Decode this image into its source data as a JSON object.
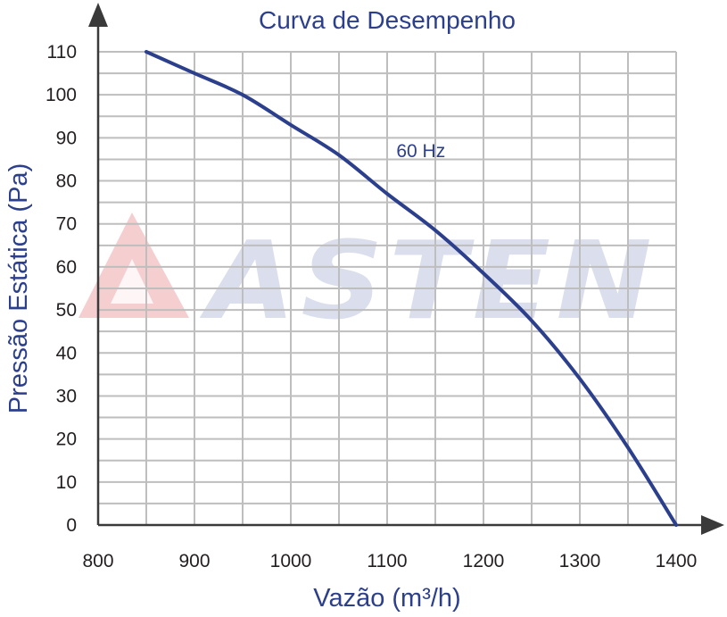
{
  "chart_data": {
    "type": "line",
    "title": "Curva de Desempenho",
    "xlabel": "Vazão (m³/h)",
    "ylabel": "Pressão Estática (Pa)",
    "xlim": [
      800,
      1400
    ],
    "ylim": [
      0,
      110
    ],
    "xticks": [
      800,
      900,
      1000,
      1100,
      1200,
      1300,
      1400
    ],
    "yticks": [
      0,
      10,
      20,
      30,
      40,
      50,
      60,
      70,
      80,
      90,
      100,
      110
    ],
    "grid": true,
    "series": [
      {
        "name": "60 Hz",
        "x": [
          850,
          900,
          950,
          1000,
          1050,
          1100,
          1150,
          1200,
          1250,
          1300,
          1350,
          1400
        ],
        "y": [
          110,
          105,
          100,
          93,
          86,
          77,
          68.5,
          58.5,
          47.5,
          34,
          18,
          0
        ]
      }
    ],
    "annotations": [
      {
        "text": "60 Hz",
        "x": 1135,
        "y": 87
      }
    ],
    "colors": {
      "line": "#2b3f8c",
      "grid": "#bebebe",
      "axis": "#3a3a3a",
      "text": "#2b3f8c"
    }
  },
  "watermark": {
    "text": "ASTEN"
  }
}
